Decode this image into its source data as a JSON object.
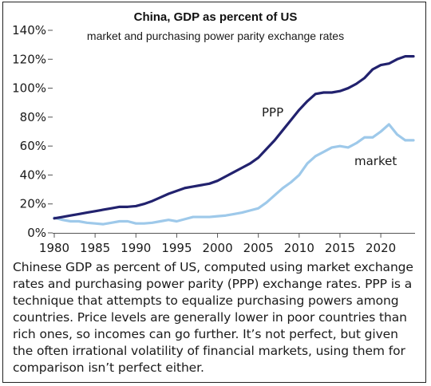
{
  "colors": {
    "ppp_line": "#22226e",
    "market_line": "#9ec9ea",
    "axis": "#555555",
    "text": "#1a1a1a"
  },
  "chart_data": {
    "type": "line",
    "title": "China, GDP as percent of US",
    "subtitle": "market and purchasing power parity exchange rates",
    "xlabel": "",
    "ylabel": "",
    "xlim": [
      1980,
      2024
    ],
    "ylim": [
      0,
      140
    ],
    "x_ticks": [
      1980,
      1985,
      1990,
      1995,
      2000,
      2005,
      2010,
      2015,
      2020
    ],
    "y_ticks": [
      0,
      20,
      40,
      60,
      80,
      100,
      120,
      140
    ],
    "y_tick_labels": [
      "0%",
      "20%",
      "40%",
      "60%",
      "80%",
      "100%",
      "120%",
      "140%"
    ],
    "grid": false,
    "x": [
      1980,
      1981,
      1982,
      1983,
      1984,
      1985,
      1986,
      1987,
      1988,
      1989,
      1990,
      1991,
      1992,
      1993,
      1994,
      1995,
      1996,
      1997,
      1998,
      1999,
      2000,
      2001,
      2002,
      2003,
      2004,
      2005,
      2006,
      2007,
      2008,
      2009,
      2010,
      2011,
      2012,
      2013,
      2014,
      2015,
      2016,
      2017,
      2018,
      2019,
      2020,
      2021,
      2022,
      2023,
      2024
    ],
    "series": [
      {
        "name": "PPP",
        "color": "#22226e",
        "values": [
          10,
          11,
          12,
          13,
          14,
          15,
          16,
          17,
          18,
          18,
          18.5,
          20,
          22,
          24.5,
          27,
          29,
          31,
          32,
          33,
          34,
          36,
          39,
          42,
          45,
          48,
          52,
          58,
          64,
          71,
          78,
          85,
          91,
          96,
          97,
          97,
          98,
          100,
          103,
          107,
          113,
          116,
          117,
          120,
          122,
          122
        ]
      },
      {
        "name": "market",
        "color": "#9ec9ea",
        "values": [
          10.5,
          9,
          8,
          8,
          7,
          6.5,
          6,
          7,
          8,
          8,
          6.5,
          6.5,
          7,
          8,
          9,
          8,
          9.5,
          11,
          11,
          11,
          11.5,
          12,
          13,
          14,
          15.5,
          17,
          21,
          26,
          31,
          35,
          40,
          48,
          53,
          56,
          59,
          60,
          59,
          62,
          66,
          66,
          70,
          75,
          68,
          64,
          64
        ]
      }
    ]
  },
  "caption": "Chinese GDP as percent of US, computed using market exchange rates and purchasing power parity (PPP) exchange rates. PPP is a technique that attempts to equalize purchasing powers among countries. Price levels are generally lower in poor countries than rich ones, so incomes can go further. It’s not perfect, but given the often irrational volatility of financial markets, using them for comparison isn’t perfect either."
}
